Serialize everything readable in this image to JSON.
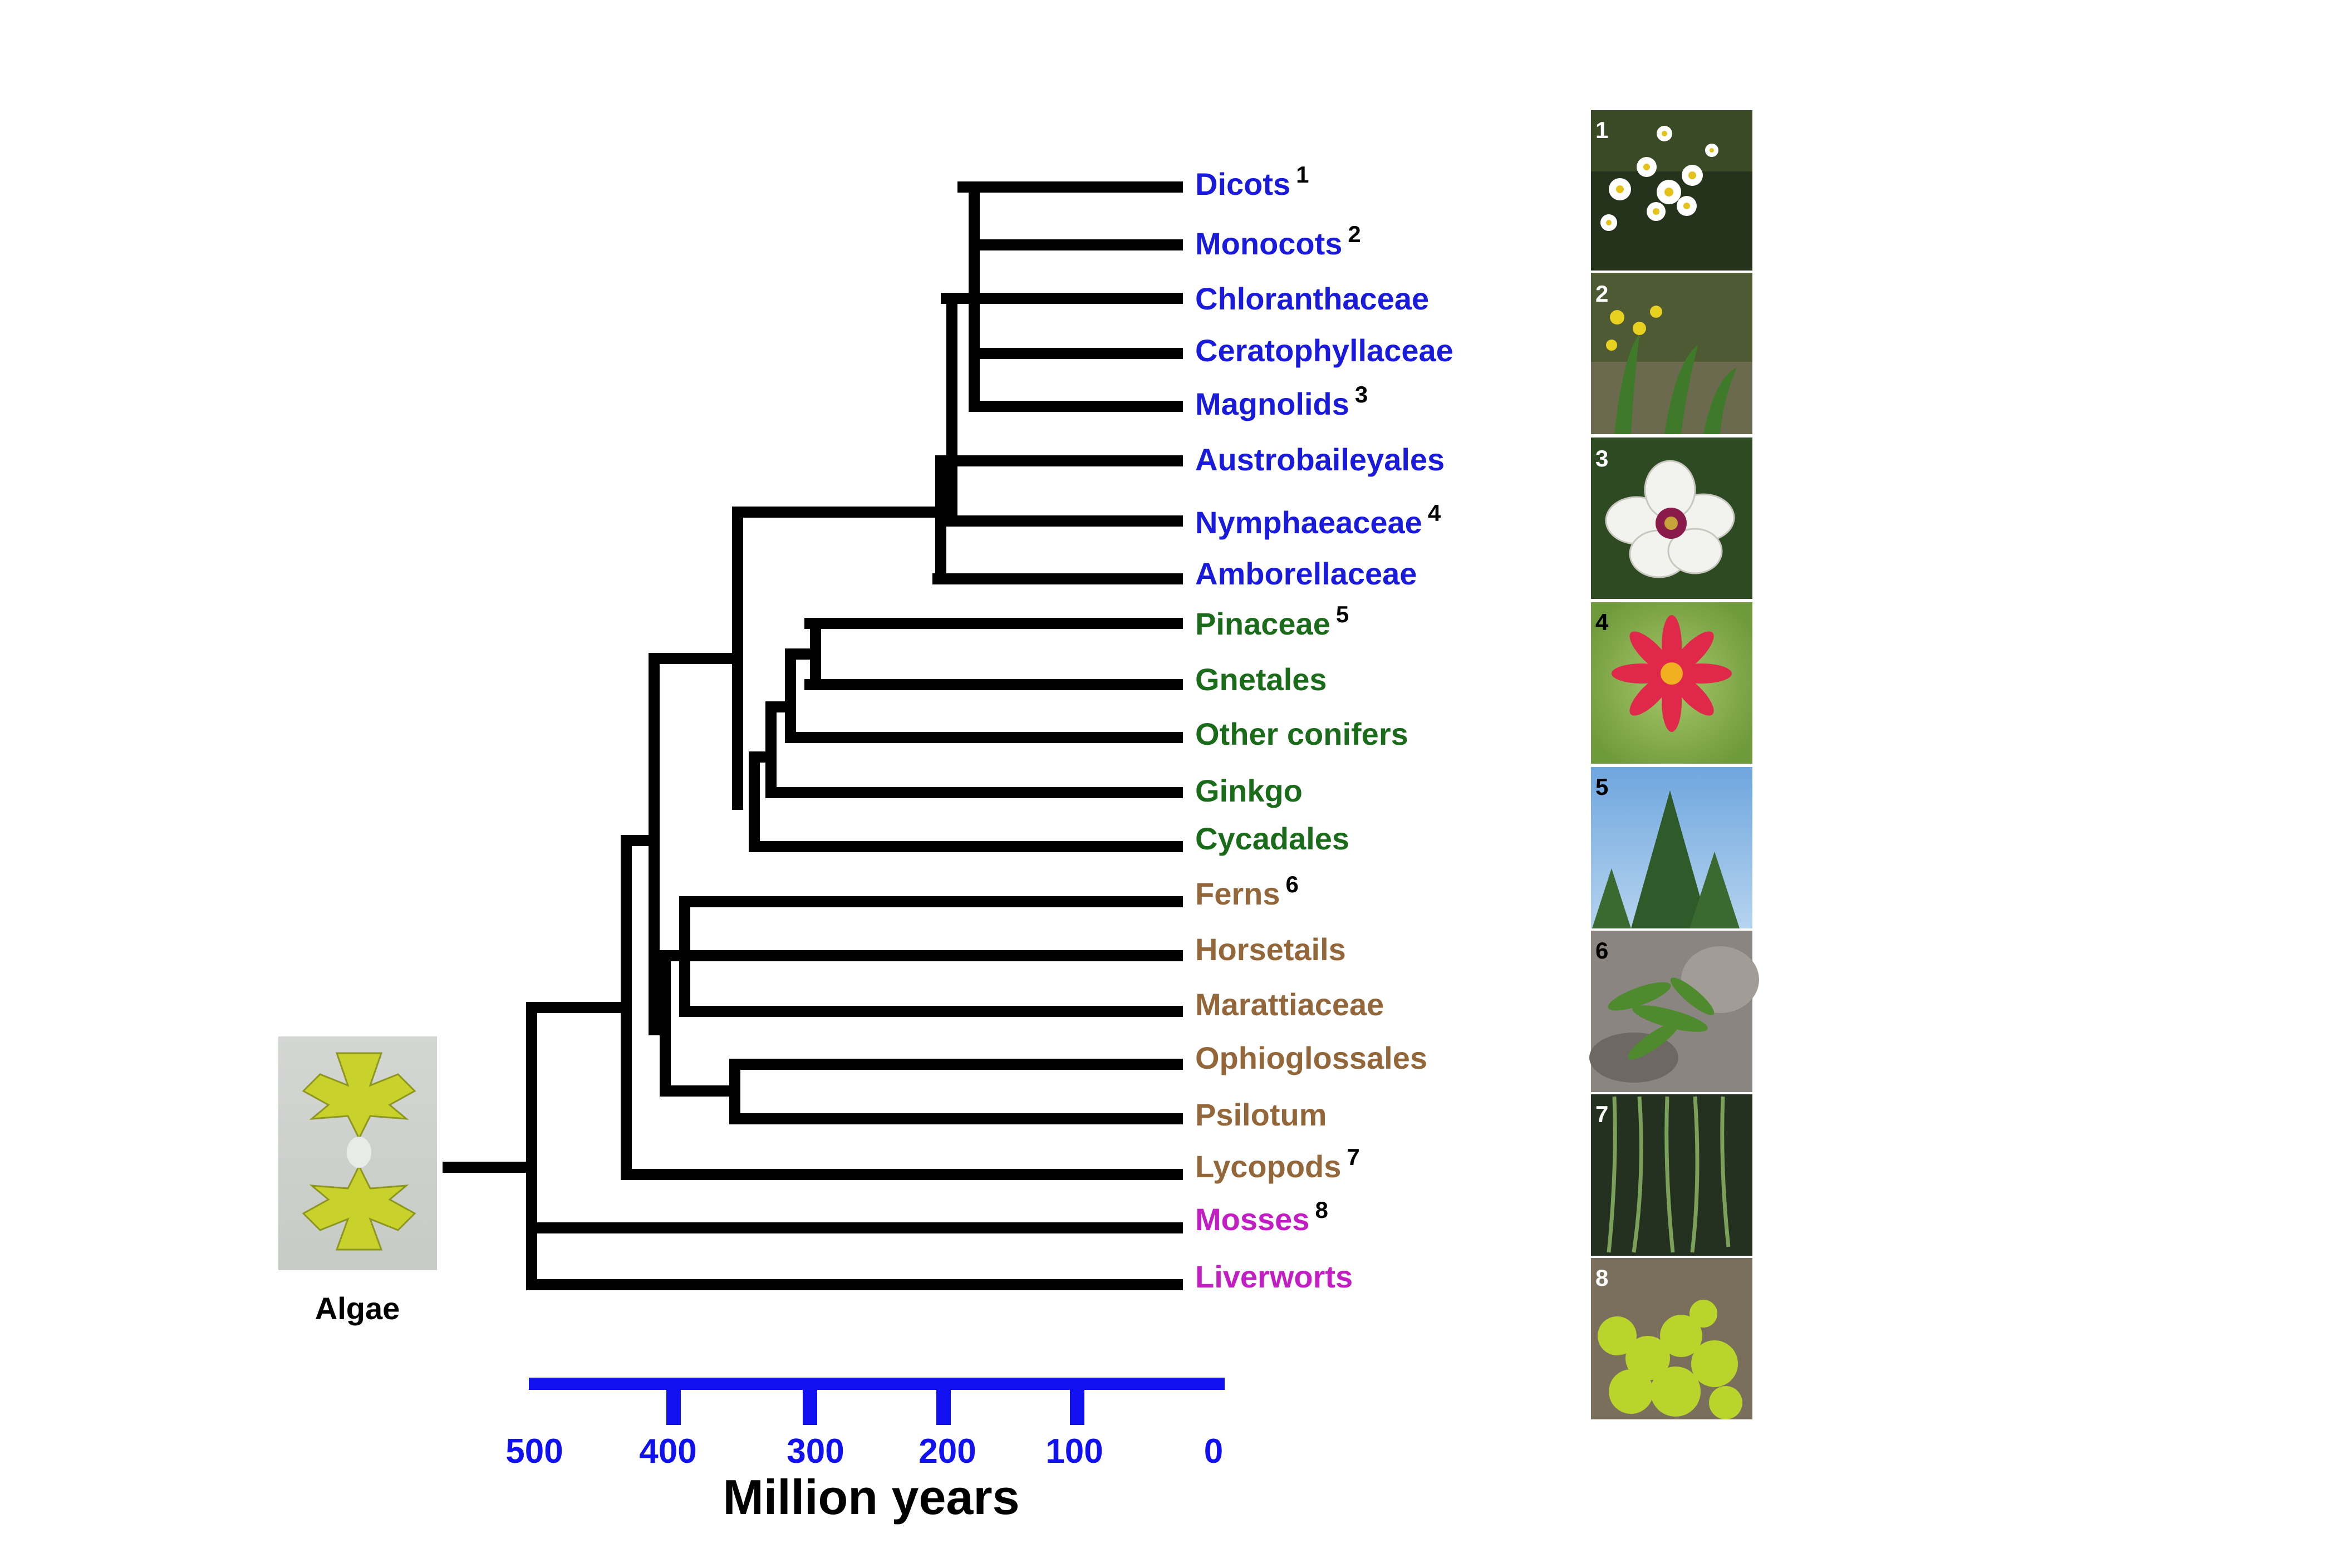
{
  "colors": {
    "branch": "#000000",
    "angiosperm": "#1a1adc",
    "gymnosperm": "#1a6b1a",
    "fern": "#94673a",
    "bryophyte": "#c21ec4",
    "axis": "#1010f0"
  },
  "taxa": [
    {
      "name": "Dicots",
      "sup": "1",
      "group": "angiosperm"
    },
    {
      "name": "Monocots",
      "sup": "2",
      "group": "angiosperm"
    },
    {
      "name": "Chloranthaceae",
      "sup": "",
      "group": "angiosperm"
    },
    {
      "name": "Ceratophyllaceae",
      "sup": "",
      "group": "angiosperm"
    },
    {
      "name": "Magnolids",
      "sup": "3",
      "group": "angiosperm"
    },
    {
      "name": "Austrobaileyales",
      "sup": "",
      "group": "angiosperm"
    },
    {
      "name": "Nymphaeaceae",
      "sup": "4",
      "group": "angiosperm"
    },
    {
      "name": "Amborellaceae",
      "sup": "",
      "group": "angiosperm"
    },
    {
      "name": "Pinaceae",
      "sup": "5",
      "group": "gymnosperm"
    },
    {
      "name": "Gnetales",
      "sup": "",
      "group": "gymnosperm"
    },
    {
      "name": "Other conifers",
      "sup": "",
      "group": "gymnosperm"
    },
    {
      "name": "Ginkgo",
      "sup": "",
      "group": "gymnosperm"
    },
    {
      "name": "Cycadales",
      "sup": "",
      "group": "gymnosperm"
    },
    {
      "name": "Ferns",
      "sup": "6",
      "group": "fern"
    },
    {
      "name": "Horsetails",
      "sup": "",
      "group": "fern"
    },
    {
      "name": "Marattiaceae",
      "sup": "",
      "group": "fern"
    },
    {
      "name": "Ophioglossales",
      "sup": "",
      "group": "fern"
    },
    {
      "name": "Psilotum",
      "sup": "",
      "group": "fern"
    },
    {
      "name": "Lycopods",
      "sup": "7",
      "group": "fern"
    },
    {
      "name": "Mosses",
      "sup": "8",
      "group": "bryophyte"
    },
    {
      "name": "Liverworts",
      "sup": "",
      "group": "bryophyte"
    }
  ],
  "axis": {
    "ticks": [
      "500",
      "400",
      "300",
      "200",
      "100",
      "0"
    ],
    "title": "Million years"
  },
  "outgroup": {
    "label": "Algae",
    "image": "desmid alga micrograph"
  },
  "photos": [
    {
      "number": "1",
      "subject": "white daisy flowers"
    },
    {
      "number": "2",
      "subject": "yellow lady's slipper orchids"
    },
    {
      "number": "3",
      "subject": "white magnolia flower"
    },
    {
      "number": "4",
      "subject": "red water lily"
    },
    {
      "number": "5",
      "subject": "spruce tree"
    },
    {
      "number": "6",
      "subject": "fern on rocks"
    },
    {
      "number": "7",
      "subject": "hanging lycopod"
    },
    {
      "number": "8",
      "subject": "yellow-green moss"
    }
  ]
}
